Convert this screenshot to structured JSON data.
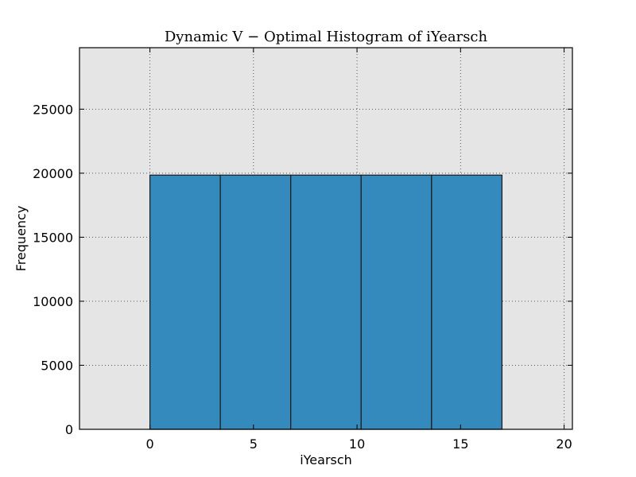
{
  "chart_data": {
    "type": "bar",
    "title": "Dynamic V − Optimal Histogram of iYearsch",
    "xlabel": "iYearsch",
    "ylabel": "Frequency",
    "xlim": [
      -3.4,
      20.4
    ],
    "ylim": [
      0,
      29800
    ],
    "xticks": [
      0,
      5,
      10,
      15,
      20
    ],
    "yticks": [
      0,
      5000,
      10000,
      15000,
      20000,
      25000
    ],
    "bins": [
      {
        "start": 0.0,
        "end": 3.4,
        "value": 19850
      },
      {
        "start": 3.4,
        "end": 6.8,
        "value": 19850
      },
      {
        "start": 6.8,
        "end": 10.2,
        "value": 19850
      },
      {
        "start": 10.2,
        "end": 13.6,
        "value": 19850
      },
      {
        "start": 13.6,
        "end": 17.0,
        "value": 19850
      }
    ],
    "grid": true,
    "colors": {
      "bar": "#348abd",
      "bar_edge": "#1a1a1a",
      "plot_background": "#e5e5e5",
      "grid": "#555555"
    }
  }
}
